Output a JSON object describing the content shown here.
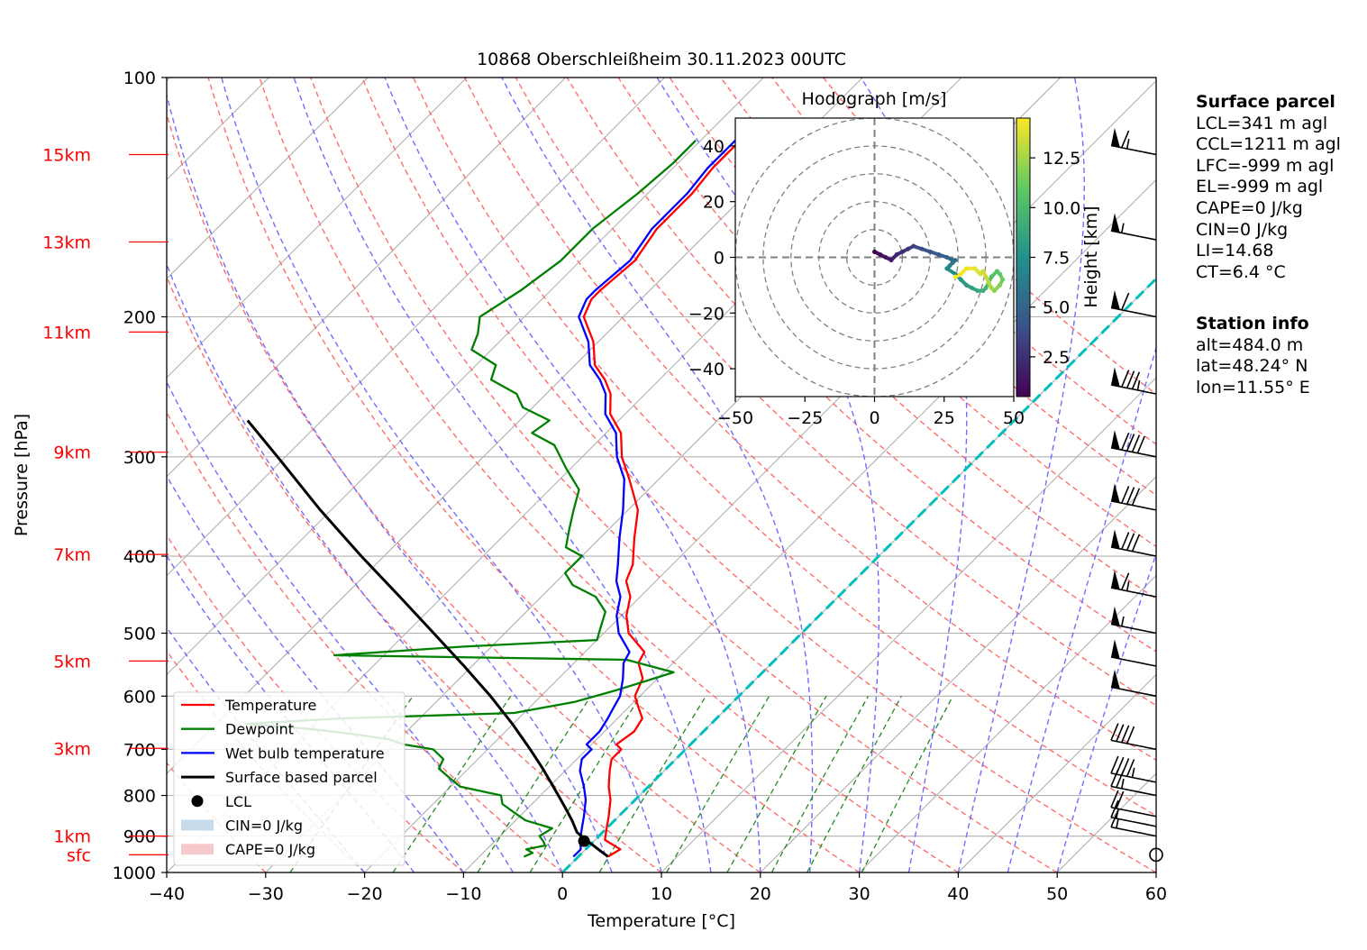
{
  "chart_data": [
    {
      "type": "line",
      "title": "10868 Oberschleißheim 30.11.2023 00UTC",
      "xlabel": "Temperature [°C]",
      "ylabel": "Pressure [hPa]",
      "xlim": [
        -40,
        60
      ],
      "ylim": [
        1000,
        100
      ],
      "yscale": "log",
      "skew": true,
      "grid": true,
      "x_ticks": [
        "−40",
        "−30",
        "−20",
        "−10",
        "0",
        "10",
        "20",
        "30",
        "40",
        "50",
        "60"
      ],
      "y_ticks": [
        "100",
        "200",
        "300",
        "400",
        "500",
        "600",
        "700",
        "800",
        "900",
        "1000"
      ],
      "height_labels": [
        {
          "label": "15km",
          "p": 125
        },
        {
          "label": "13km",
          "p": 161
        },
        {
          "label": "11km",
          "p": 209
        },
        {
          "label": "9km",
          "p": 296
        },
        {
          "label": "7km",
          "p": 398
        },
        {
          "label": "5km",
          "p": 542
        },
        {
          "label": "3km",
          "p": 698
        },
        {
          "label": "1km",
          "p": 900
        },
        {
          "label": "sfc",
          "p": 950
        }
      ],
      "series": [
        {
          "name": "Temperature",
          "color": "#ff0000",
          "p": [
            955,
            935,
            910,
            880,
            850,
            810,
            780,
            745,
            720,
            700,
            690,
            665,
            640,
            620,
            600,
            570,
            545,
            528,
            500,
            475,
            450,
            430,
            410,
            380,
            350,
            320,
            300,
            280,
            265,
            250,
            240,
            230,
            215,
            200,
            190,
            185,
            170,
            155,
            140,
            130,
            120
          ],
          "t": [
            3,
            3.5,
            1,
            0,
            -1,
            -2.5,
            -4,
            -5.5,
            -6.5,
            -6.5,
            -7.5,
            -7,
            -7.5,
            -9,
            -10.5,
            -11.5,
            -13.5,
            -14,
            -17.5,
            -19.5,
            -21,
            -23,
            -24,
            -26.5,
            -29,
            -33,
            -36,
            -38.5,
            -41.5,
            -43.5,
            -45.5,
            -48,
            -50.5,
            -54,
            -55,
            -55,
            -54.5,
            -55.5,
            -55.5,
            -56,
            -56
          ]
        },
        {
          "name": "Dewpoint",
          "color": "#008000",
          "p": [
            955,
            945,
            935,
            925,
            915,
            900,
            880,
            860,
            840,
            820,
            800,
            780,
            760,
            740,
            720,
            700,
            690,
            680,
            670,
            660,
            650,
            640,
            630,
            610,
            590,
            575,
            560,
            550,
            540,
            533,
            520,
            510,
            490,
            470,
            450,
            435,
            420,
            400,
            390,
            370,
            350,
            330,
            310,
            290,
            280,
            270,
            260,
            250,
            240,
            230,
            220,
            210,
            200,
            185,
            170,
            155,
            140,
            128,
            120
          ],
          "t": [
            -5.5,
            -5,
            -6,
            -4.5,
            -5,
            -6,
            -5.5,
            -9,
            -11,
            -13,
            -14,
            -19,
            -21,
            -23,
            -23.5,
            -25.5,
            -29,
            -31,
            -35,
            -40,
            -47,
            -38,
            -21,
            -16,
            -13,
            -11,
            -9,
            -12,
            -15,
            -45,
            -33,
            -20,
            -21,
            -22,
            -24.5,
            -28,
            -30,
            -30,
            -32.5,
            -34,
            -35.5,
            -37,
            -40.5,
            -44,
            -47.5,
            -47,
            -51,
            -53,
            -57,
            -58,
            -62,
            -63,
            -64.5,
            -63,
            -62,
            -62,
            -61,
            -60.5,
            -60.5
          ]
        },
        {
          "name": "Wet bulb temperature",
          "color": "#0000ff",
          "p": [
            955,
            935,
            910,
            880,
            850,
            810,
            780,
            745,
            720,
            700,
            690,
            665,
            640,
            620,
            600,
            570,
            545,
            528,
            500,
            475,
            450,
            430,
            410,
            380,
            350,
            320,
            300,
            280,
            265,
            250,
            240,
            230,
            215,
            200,
            190,
            185,
            170,
            155,
            140,
            130,
            120
          ],
          "t": [
            -0.5,
            -0.5,
            -1.5,
            -2.5,
            -3.5,
            -5,
            -6.5,
            -8.5,
            -9.5,
            -9.5,
            -10.5,
            -10.5,
            -11,
            -11.5,
            -12,
            -13.5,
            -15,
            -15.5,
            -18.5,
            -20.5,
            -22,
            -24,
            -25.5,
            -28,
            -30.5,
            -33.5,
            -36.5,
            -39,
            -42,
            -44,
            -46,
            -48.5,
            -51,
            -54.5,
            -55.5,
            -55.5,
            -55,
            -56,
            -56,
            -56.5,
            -56.5
          ]
        },
        {
          "name": "Surface based parcel",
          "color": "#000000",
          "p": [
            955,
            940,
            925,
            910,
            890,
            860,
            830,
            800,
            770,
            740,
            700,
            650,
            600,
            550,
            500,
            450,
            400,
            350,
            300,
            270
          ],
          "t": [
            3,
            1.7,
            0.4,
            -0.9,
            -2.6,
            -4.3,
            -6.2,
            -8.2,
            -10.3,
            -12.5,
            -15.7,
            -20.1,
            -25.1,
            -30.8,
            -37.2,
            -44.3,
            -52.3,
            -61.1,
            -70.8,
            -77.5
          ]
        }
      ],
      "lcl": {
        "name": "LCL",
        "t": -1.0,
        "p": 913
      },
      "legend": {
        "position": "lower-left",
        "entries": [
          "Temperature",
          "Dewpoint",
          "Wet bulb temperature",
          "Surface based parcel",
          "LCL",
          "CIN=0 J/kg",
          "CAPE=0 J/kg"
        ],
        "colors": [
          "#ff0000",
          "#008000",
          "#0000ff",
          "#000000",
          "#000000",
          "#c6dbec",
          "#f6c9cc"
        ]
      },
      "reference_lines": {
        "isotherm_zero_color": "#00bfbf",
        "dry_adiabat_color": "#ff6e6e",
        "moist_adiabat_color": "#6e6eff",
        "mixing_ratio_color": "#228b22"
      },
      "wind_barbs": [
        {
          "p": 950,
          "speed_kt": 0
        },
        {
          "p": 900,
          "speed_kt": 15
        },
        {
          "p": 875,
          "speed_kt": 15
        },
        {
          "p": 850,
          "speed_kt": 20
        },
        {
          "p": 800,
          "speed_kt": 25
        },
        {
          "p": 770,
          "speed_kt": 45
        },
        {
          "p": 700,
          "speed_kt": 40
        },
        {
          "p": 600,
          "speed_kt": 50
        },
        {
          "p": 550,
          "speed_kt": 50
        },
        {
          "p": 500,
          "speed_kt": 55
        },
        {
          "p": 450,
          "speed_kt": 65
        },
        {
          "p": 400,
          "speed_kt": 80
        },
        {
          "p": 350,
          "speed_kt": 80
        },
        {
          "p": 300,
          "speed_kt": 90
        },
        {
          "p": 250,
          "speed_kt": 85
        },
        {
          "p": 200,
          "speed_kt": 60
        },
        {
          "p": 160,
          "speed_kt": 55
        },
        {
          "p": 125,
          "speed_kt": 65
        }
      ]
    },
    {
      "type": "scatter",
      "title": "Hodograph [m/s]",
      "xlim": [
        -50,
        50
      ],
      "ylim": [
        -50,
        50
      ],
      "x_ticks": [
        "−50",
        "−25",
        "0",
        "25",
        "50"
      ],
      "y_ticks": [
        "40",
        "20",
        "0",
        "−20",
        "−40"
      ],
      "rings": [
        10,
        20,
        30,
        40,
        50
      ],
      "colorbar": {
        "label": "Height [km]",
        "ticks": [
          "12.5",
          "10.0",
          "7.5",
          "5.0",
          "2.5"
        ],
        "range": [
          0.5,
          14.5
        ]
      },
      "u": [
        0,
        2,
        4,
        6,
        8,
        10,
        12,
        14,
        17,
        20,
        23,
        26,
        28,
        29,
        28,
        27,
        26,
        29,
        31,
        33,
        35,
        37,
        39,
        40,
        42,
        44,
        45,
        46,
        45,
        43,
        42,
        41,
        40,
        39,
        38,
        37,
        36,
        33,
        31,
        29
      ],
      "v": [
        2,
        1,
        0,
        -1,
        1,
        2,
        3,
        4,
        3,
        2,
        1,
        0,
        -1,
        -1,
        -2,
        -3,
        -4,
        -6,
        -8,
        -10,
        -11,
        -12,
        -12,
        -11,
        -7,
        -5,
        -6,
        -8,
        -10,
        -12,
        -11,
        -9,
        -7,
        -5,
        -6,
        -5,
        -4,
        -4,
        -6,
        -7
      ],
      "height_km": [
        0.5,
        0.9,
        1.3,
        1.7,
        2.1,
        2.5,
        2.9,
        3.3,
        3.7,
        4.1,
        4.5,
        4.9,
        5.3,
        5.7,
        6.1,
        6.5,
        6.9,
        7.3,
        7.7,
        8.1,
        8.5,
        8.9,
        9.3,
        9.7,
        10.1,
        10.5,
        10.9,
        11.3,
        11.7,
        12.1,
        12.5,
        12.9,
        13.2,
        13.4,
        13.6,
        13.8,
        14,
        14.2,
        14.4,
        14.5
      ]
    }
  ],
  "surface_parcel": {
    "heading": "Surface parcel",
    "lines": [
      "LCL=341 m agl",
      "CCL=1211 m agl",
      "LFC=-999 m agl",
      "EL=-999 m agl",
      "CAPE=0 J/kg",
      "CIN=0 J/kg",
      "LI=14.68",
      "CT=6.4 °C"
    ]
  },
  "station_info": {
    "heading": "Station info",
    "lines": [
      "alt=484.0 m",
      "lat=48.24° N",
      "lon=11.55° E"
    ]
  }
}
